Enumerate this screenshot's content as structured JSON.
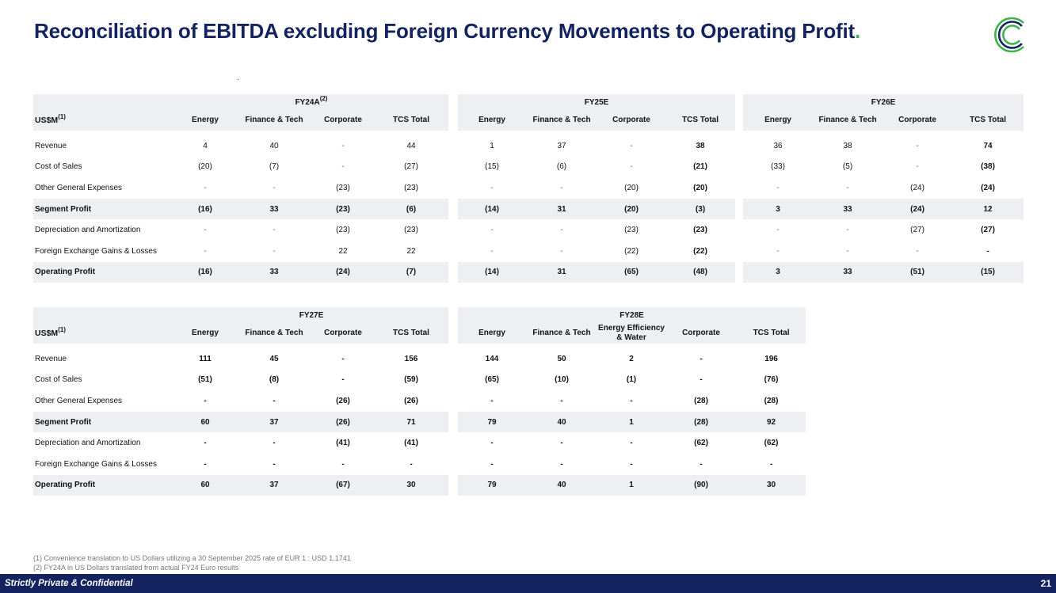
{
  "title": "Reconciliation of EBITDA excluding Foreign Currency Movements to Operating Profit",
  "title_dot": ".",
  "unit_label": "US$M",
  "unit_note": "(1)",
  "row_labels": [
    "Revenue",
    "Cost of Sales",
    "Other General Expenses",
    "Segment Profit",
    "Depreciation and Amortization",
    "Foreign Exchange Gains & Losses",
    "Operating Profit"
  ],
  "table1": {
    "fy24": {
      "label": "FY24A",
      "note": "(2)",
      "cols": [
        "Energy",
        "Finance & Tech",
        "Corporate",
        "TCS Total"
      ],
      "rows": [
        [
          "4",
          "40",
          "-",
          "44"
        ],
        [
          "(20)",
          "(7)",
          "-",
          "(27)"
        ],
        [
          "-",
          "-",
          "(23)",
          "(23)"
        ],
        [
          "(16)",
          "33",
          "(23)",
          "(6)"
        ],
        [
          "-",
          "-",
          "(23)",
          "(23)"
        ],
        [
          "-",
          "-",
          "22",
          "22"
        ],
        [
          "(16)",
          "33",
          "(24)",
          "(7)"
        ]
      ]
    },
    "fy25": {
      "label": "FY25E",
      "cols": [
        "Energy",
        "Finance & Tech",
        "Corporate",
        "TCS Total"
      ],
      "rows": [
        [
          "1",
          "37",
          "-",
          "38"
        ],
        [
          "(15)",
          "(6)",
          "-",
          "(21)"
        ],
        [
          "-",
          "-",
          "(20)",
          "(20)"
        ],
        [
          "(14)",
          "31",
          "(20)",
          "(3)"
        ],
        [
          "-",
          "-",
          "(23)",
          "(23)"
        ],
        [
          "-",
          "-",
          "(22)",
          "(22)"
        ],
        [
          "(14)",
          "31",
          "(65)",
          "(48)"
        ]
      ]
    },
    "fy26": {
      "label": "FY26E",
      "cols": [
        "Energy",
        "Finance & Tech",
        "Corporate",
        "TCS Total"
      ],
      "rows": [
        [
          "36",
          "38",
          "-",
          "74"
        ],
        [
          "(33)",
          "(5)",
          "-",
          "(38)"
        ],
        [
          "-",
          "-",
          "(24)",
          "(24)"
        ],
        [
          "3",
          "33",
          "(24)",
          "12"
        ],
        [
          "-",
          "-",
          "(27)",
          "(27)"
        ],
        [
          "-",
          "-",
          "-",
          "-"
        ],
        [
          "3",
          "33",
          "(51)",
          "(15)"
        ]
      ]
    }
  },
  "table2": {
    "fy27": {
      "label": "FY27E",
      "cols": [
        "Energy",
        "Finance & Tech",
        "Corporate",
        "TCS Total"
      ],
      "rows": [
        [
          "111",
          "45",
          "-",
          "156"
        ],
        [
          "(51)",
          "(8)",
          "-",
          "(59)"
        ],
        [
          "-",
          "-",
          "(26)",
          "(26)"
        ],
        [
          "60",
          "37",
          "(26)",
          "71"
        ],
        [
          "-",
          "-",
          "(41)",
          "(41)"
        ],
        [
          "-",
          "-",
          "-",
          "-"
        ],
        [
          "60",
          "37",
          "(67)",
          "30"
        ]
      ]
    },
    "fy28": {
      "label": "FY28E",
      "cols": [
        "Energy",
        "Finance & Tech",
        "Energy Efficiency\n& Water",
        "Corporate",
        "TCS Total"
      ],
      "rows": [
        [
          "144",
          "50",
          "2",
          "-",
          "196"
        ],
        [
          "(65)",
          "(10)",
          "(1)",
          "-",
          "(76)"
        ],
        [
          "-",
          "-",
          "-",
          "(28)",
          "(28)"
        ],
        [
          "79",
          "40",
          "1",
          "(28)",
          "92"
        ],
        [
          "-",
          "-",
          "-",
          "(62)",
          "(62)"
        ],
        [
          "-",
          "-",
          "-",
          "-",
          "-"
        ],
        [
          "79",
          "40",
          "1",
          "(90)",
          "30"
        ]
      ]
    }
  },
  "notes": [
    "(1)  Convenience translation to US Dollars utilizing a 30 September 2025 rate of EUR 1 : USD 1.1741",
    "(2)  FY24A in US Dollars translated from actual FY24 Euro results"
  ],
  "footer": {
    "confidential": "Strictly Private & Confidential",
    "page": "21"
  },
  "colors": {
    "navy": "#13235f",
    "green": "#3fb24a",
    "header_bg": "#eeeff2"
  },
  "logo_icon": "c-ring-logo-icon"
}
